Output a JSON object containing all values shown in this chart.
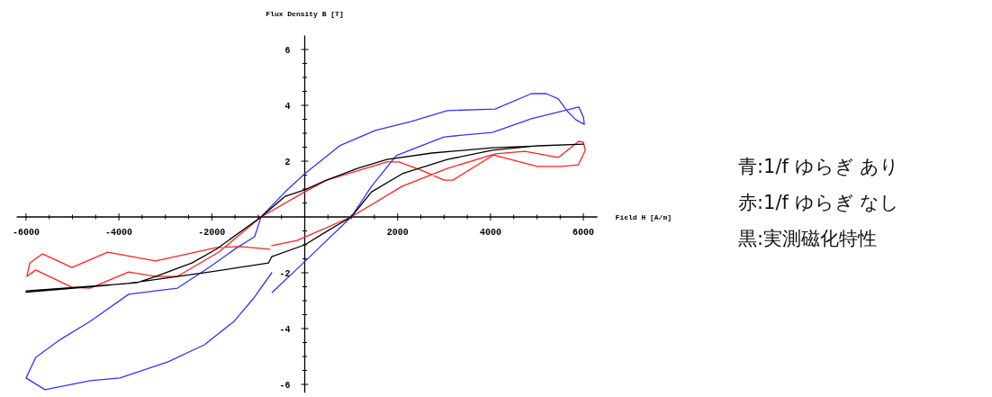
{
  "chart_data": {
    "type": "line",
    "xlabel": "Field H [A/m]",
    "ylabel": "Flux Density B [T]",
    "xlim": [
      -6200,
      6300
    ],
    "ylim": [
      -6.3,
      6.5
    ],
    "xticks": [
      -6000,
      {
        "value": -5500,
        "label": null
      },
      {
        "value": -5000,
        "label": null
      },
      {
        "value": -4500,
        "label": null
      },
      -4000,
      {
        "value": -3500,
        "label": null
      },
      {
        "value": -3000,
        "label": null
      },
      {
        "value": -2500,
        "label": null
      },
      -2000,
      {
        "value": -1500,
        "label": null
      },
      {
        "value": -1000,
        "label": null
      },
      {
        "value": -500,
        "label": null
      },
      {
        "value": 500,
        "label": null
      },
      {
        "value": 1000,
        "label": null
      },
      {
        "value": 1500,
        "label": null
      },
      2000,
      {
        "value": 2500,
        "label": null
      },
      {
        "value": 3000,
        "label": null
      },
      {
        "value": 3500,
        "label": null
      },
      4000,
      {
        "value": 4500,
        "label": null
      },
      {
        "value": 5000,
        "label": null
      },
      {
        "value": 5500,
        "label": null
      },
      6000
    ],
    "yticks": [
      -6,
      {
        "value": -5.5,
        "label": null
      },
      {
        "value": -5,
        "label": null
      },
      {
        "value": -4.5,
        "label": null
      },
      -4,
      {
        "value": -3.5,
        "label": null
      },
      {
        "value": -3,
        "label": null
      },
      {
        "value": -2.5,
        "label": null
      },
      -2,
      {
        "value": -1.5,
        "label": null
      },
      {
        "value": -1,
        "label": null
      },
      {
        "value": -0.5,
        "label": null
      },
      {
        "value": 0.5,
        "label": null
      },
      {
        "value": 1,
        "label": null
      },
      {
        "value": 1.5,
        "label": null
      },
      2,
      {
        "value": 2.5,
        "label": null
      },
      {
        "value": 3,
        "label": null
      },
      {
        "value": 3.5,
        "label": null
      },
      4,
      {
        "value": 4.5,
        "label": null
      },
      {
        "value": 5,
        "label": null
      },
      {
        "value": 5.5,
        "label": null
      },
      6
    ],
    "series": [
      {
        "color": "#3333ff",
        "x": [
          -700,
          0,
          1000,
          1440,
          1970,
          2350,
          3000,
          4040,
          4880,
          5900,
          6000,
          6020,
          5840,
          5650,
          5460,
          5200,
          4880,
          4100,
          3070,
          2300,
          1520,
          750,
          0,
          -420,
          -940,
          -1080,
          -1460,
          -2050,
          -2740,
          -3210,
          -3790,
          -4620,
          -5260,
          -5790,
          -6000,
          -5590,
          -4620,
          -3980,
          -2940,
          -2160,
          -1520,
          -1080,
          -710
        ],
        "values": [
          -2.7,
          -1.6,
          0,
          1.1,
          2.2,
          2.45,
          2.87,
          3.03,
          3.52,
          3.94,
          3.58,
          3.32,
          3.48,
          3.8,
          4.23,
          4.42,
          4.42,
          3.87,
          3.81,
          3.42,
          3.1,
          2.55,
          1.55,
          0.9,
          0,
          -0.71,
          -1.1,
          -1.8,
          -2.55,
          -2.65,
          -2.77,
          -3.74,
          -4.39,
          -5.03,
          -5.77,
          -6.19,
          -5.87,
          -5.77,
          -5.19,
          -4.58,
          -3.74,
          -2.87,
          -2.0
        ]
      },
      {
        "color": "#ff2020",
        "x": [
          -710,
          -165,
          1000,
          2100,
          3070,
          4040,
          5010,
          5520,
          5890,
          6040,
          6000,
          5900,
          5460,
          4740,
          4100,
          3190,
          3000,
          2550,
          2030,
          1770,
          470,
          0,
          -940,
          -1850,
          -2740,
          -3210,
          -3790,
          -4620,
          -5010,
          -5790,
          -5980,
          -5920,
          -5650,
          -5010,
          -4240,
          -3210,
          -1910,
          -1390,
          -750
        ],
        "values": [
          -1.03,
          -0.84,
          0,
          1.1,
          1.74,
          2.23,
          1.81,
          1.81,
          1.87,
          2.39,
          2.68,
          2.71,
          2.13,
          2.35,
          2.26,
          1.32,
          1.32,
          1.65,
          1.97,
          1.97,
          1.32,
          0.9,
          0,
          -1.26,
          -2.13,
          -2.13,
          -1.97,
          -2.55,
          -2.52,
          -1.9,
          -2.13,
          -1.65,
          -1.32,
          -1.81,
          -1.26,
          -1.58,
          -1.1,
          -1.06,
          -1.16
        ]
      },
      {
        "color": "#000000",
        "x": [
          -6000,
          -4620,
          -3600,
          -3210,
          -2430,
          -1910,
          -940,
          -420,
          0,
          470,
          1130,
          1770,
          2740,
          4040,
          6000,
          5010,
          4040,
          3070,
          2100,
          1440,
          1000,
          470,
          0,
          -710,
          -780,
          -2050,
          -3850,
          -6000
        ],
        "values": [
          -2.7,
          -2.5,
          -2.35,
          -2.13,
          -1.65,
          -1.16,
          0,
          0.74,
          0.97,
          1.32,
          1.74,
          2.06,
          2.29,
          2.48,
          2.61,
          2.55,
          2.39,
          2.06,
          1.55,
          0.9,
          0,
          -0.52,
          -1.0,
          -1.42,
          -1.65,
          -1.97,
          -2.39,
          -2.65
        ]
      }
    ],
    "annotations": [
      "青:1/f ゆらぎ あり",
      "赤:1/f ゆらぎ なし",
      "黒:実測磁化特性"
    ]
  }
}
